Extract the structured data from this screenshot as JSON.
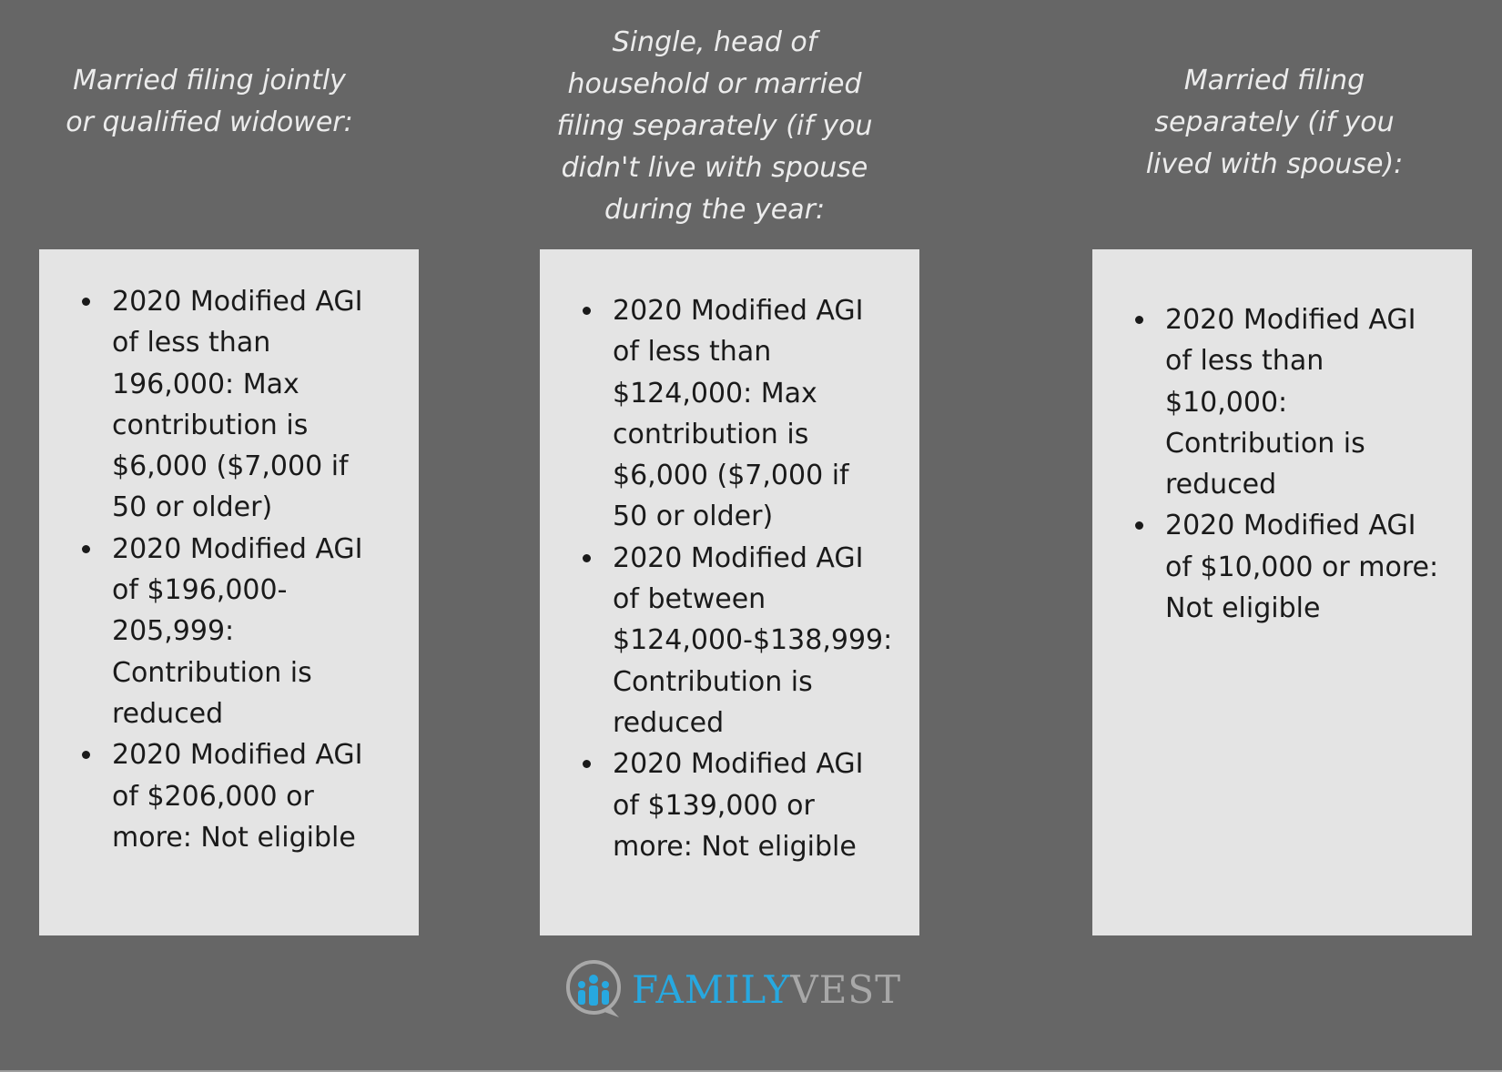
{
  "columns": [
    {
      "heading": "Married filing jointly or qualified widower:",
      "items": [
        "2020 Modified AGI of less than 196,000: Max contribution is $6,000 ($7,000 if 50 or older)",
        "2020 Modified AGI of $196,000-205,999: Contribution is reduced",
        "2020 Modified AGI of $206,000 or more: Not eligible"
      ]
    },
    {
      "heading": "Single, head of household or married filing separately (if you didn't live with spouse during the year:",
      "items": [
        "2020 Modified AGI of less than $124,000: Max contribution is $6,000 ($7,000 if 50 or older)",
        "2020 Modified AGI of between $124,000-$138,999: Contribution is reduced",
        "2020 Modified AGI of $139,000 or more: Not eligible"
      ]
    },
    {
      "heading": "Married filing separately (if you lived with spouse):",
      "items": [
        "2020 Modified AGI of less than $10,000: Contribution is reduced",
        "2020 Modified AGI of $10,000 or more: Not eligible"
      ]
    }
  ],
  "logo": {
    "part1": "FAMILY",
    "part2": "VEST",
    "brand_color": "#27a8e0",
    "secondary_color": "#a8a8a8"
  },
  "colors": {
    "background": "#666666",
    "box": "#e4e4e4"
  }
}
